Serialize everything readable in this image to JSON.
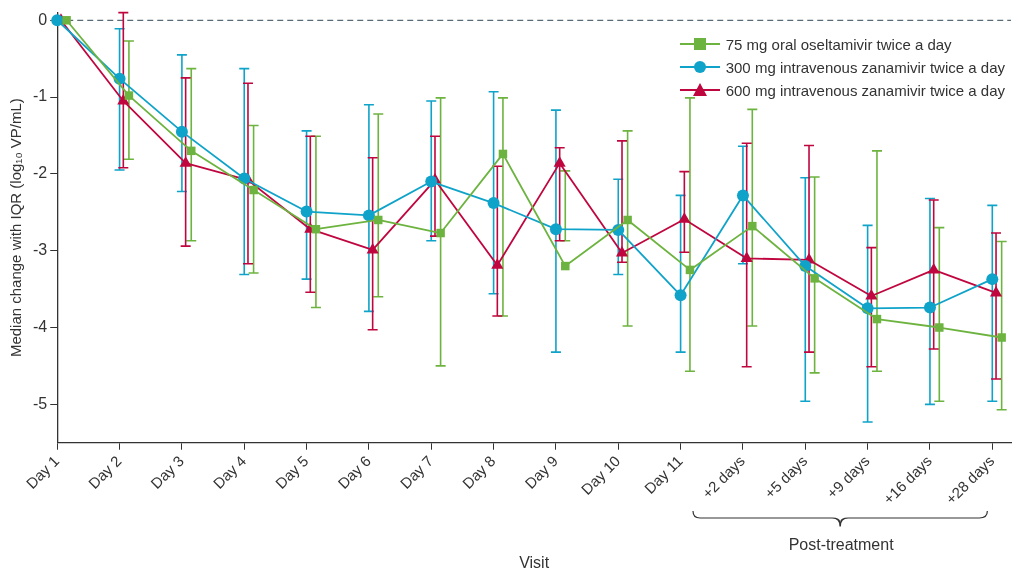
{
  "chart_data": {
    "type": "line",
    "xlabel": "Visit",
    "ylabel": "Median change with IQR (log₁₀ VP/mL)",
    "annotations": [
      "Post-treatment"
    ],
    "categories": [
      "Day 1",
      "Day 2",
      "Day 3",
      "Day 4",
      "Day 5",
      "Day 6",
      "Day 7",
      "Day 8",
      "Day 9",
      "Day 10",
      "Day 11",
      "+2 days",
      "+5 days",
      "+9 days",
      "+16 days",
      "+28 days"
    ],
    "ylim": [
      -5.5,
      0.1
    ],
    "yticks": [
      0,
      -1,
      -2,
      -3,
      -4,
      -5
    ],
    "legend": "top right",
    "line_style": "solid",
    "ref_lines": [
      {
        "axis": "y",
        "value": 0,
        "color": "#5a6b78",
        "line_style": "dashed"
      }
    ],
    "series": [
      {
        "name": "75 mg oral oseltamivir twice a day",
        "color": "#6db33f",
        "marker": "square",
        "values": [
          0,
          -0.98,
          -1.7,
          -2.21,
          -2.72,
          -2.6,
          -2.77,
          -1.74,
          -3.2,
          -2.6,
          -3.25,
          -2.68,
          -3.36,
          -3.89,
          -4.0,
          -4.13
        ],
        "errors": [
          null,
          [
            -1.81,
            -0.27
          ],
          [
            -2.87,
            -0.63
          ],
          [
            -3.29,
            -1.37
          ],
          [
            -3.74,
            -1.51
          ],
          [
            -3.6,
            -1.22
          ],
          [
            -4.5,
            -1.01
          ],
          [
            -3.85,
            -1.01
          ],
          [
            -2.87,
            -1.96
          ],
          [
            -3.98,
            -1.44
          ],
          [
            -4.57,
            -1.01
          ],
          [
            -3.98,
            -1.16
          ],
          [
            -4.59,
            -2.04
          ],
          [
            -4.57,
            -1.7
          ],
          [
            -4.96,
            -2.7
          ],
          [
            -5.07,
            -2.88
          ]
        ]
      },
      {
        "name": "300 mg intravenous zanamivir twice a day",
        "color": "#0fa3c9",
        "marker": "circle",
        "values": [
          0,
          -0.76,
          -1.45,
          -2.06,
          -2.49,
          -2.54,
          -2.1,
          -2.38,
          -2.72,
          -2.73,
          -3.58,
          -2.28,
          -3.2,
          -3.75,
          -3.74,
          -3.37
        ],
        "errors": [
          null,
          [
            -1.95,
            -0.11
          ],
          [
            -2.23,
            -0.45
          ],
          [
            -3.31,
            -0.63
          ],
          [
            -3.37,
            -1.44
          ],
          [
            -3.79,
            -1.1
          ],
          [
            -2.87,
            -1.05
          ],
          [
            -3.56,
            -0.93
          ],
          [
            -4.32,
            -1.17
          ],
          [
            -3.31,
            -2.07
          ],
          [
            -4.32,
            -2.28
          ],
          [
            -3.17,
            -1.64
          ],
          [
            -4.96,
            -2.05
          ],
          [
            -5.23,
            -2.67
          ],
          [
            -5.0,
            -2.32
          ],
          [
            -4.96,
            -2.41
          ]
        ]
      },
      {
        "name": "600 mg intravenous zanamivir twice a day",
        "color": "#c0063f",
        "marker": "triangle",
        "values": [
          0,
          -1.05,
          -1.86,
          -2.08,
          -2.72,
          -2.99,
          -2.08,
          -3.19,
          -1.86,
          -3.03,
          -2.59,
          -3.1,
          -3.12,
          -3.59,
          -3.25,
          -3.55
        ],
        "errors": [
          null,
          [
            -1.92,
            0.1
          ],
          [
            -2.94,
            -0.75
          ],
          [
            -3.17,
            -0.82
          ],
          [
            -3.54,
            -1.51
          ],
          [
            -4.03,
            -1.79
          ],
          [
            -2.81,
            -1.51
          ],
          [
            -3.85,
            -1.9
          ],
          [
            -2.87,
            -1.66
          ],
          [
            -3.15,
            -1.57
          ],
          [
            -3.02,
            -1.97
          ],
          [
            -4.51,
            -1.6
          ],
          [
            -4.32,
            -1.63
          ],
          [
            -4.51,
            -2.96
          ],
          [
            -4.28,
            -2.34
          ],
          [
            -4.67,
            -2.77
          ]
        ]
      }
    ]
  }
}
